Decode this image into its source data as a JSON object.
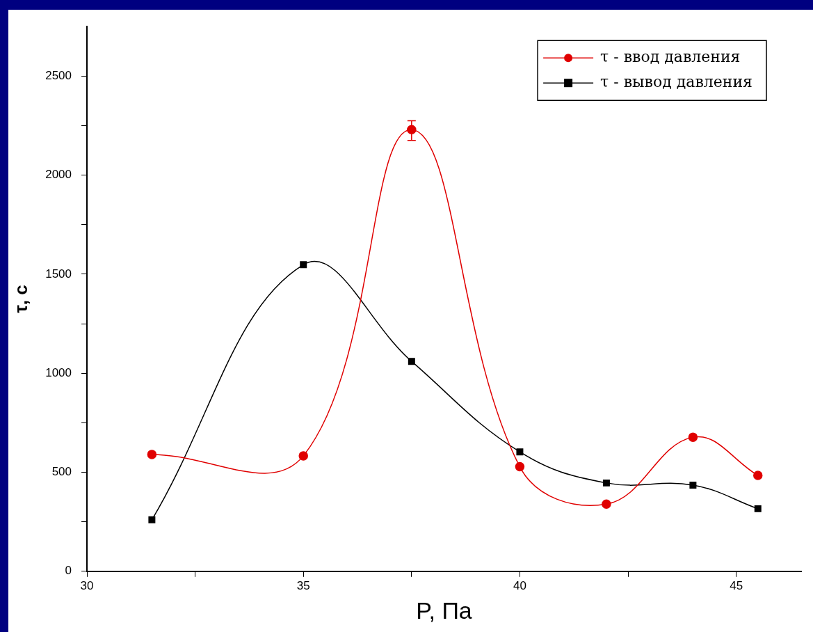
{
  "chart_data": {
    "type": "line",
    "xlabel": "P, Па",
    "ylabel": "τ, с",
    "xlim": [
      30,
      46.5
    ],
    "xticks": [
      30,
      {
        "value": 32.5,
        "label": null
      },
      35,
      {
        "value": 37.5,
        "label": null
      },
      40,
      {
        "value": 42.5,
        "label": null
      },
      45
    ],
    "ylim": [
      0,
      2750
    ],
    "yticks": [
      0,
      {
        "value": 250,
        "label": null
      },
      500,
      {
        "value": 750,
        "label": null
      },
      1000,
      {
        "value": 1250,
        "label": null
      },
      1500,
      {
        "value": 1750,
        "label": null
      },
      2000,
      {
        "value": 2250,
        "label": null
      },
      2500
    ],
    "legend": "top right",
    "grid": false,
    "line_style": "solid",
    "series": [
      {
        "name": "τ - ввод давления",
        "color": "#e00000",
        "marker": "circle",
        "x": [
          31.5,
          35,
          37.5,
          40,
          42,
          44,
          45.5
        ],
        "values": [
          590,
          583,
          2230,
          528,
          339,
          677,
          484
        ],
        "errors": [
          null,
          null,
          [
            2175,
            2275
          ],
          null,
          null,
          null,
          null
        ]
      },
      {
        "name": "τ - вывод давления",
        "color": "#000000",
        "marker": "square",
        "x": [
          31.5,
          35,
          37.5,
          40,
          42,
          44,
          45.5
        ],
        "values": [
          260,
          1548,
          1060,
          603,
          446,
          435,
          316
        ]
      }
    ]
  }
}
